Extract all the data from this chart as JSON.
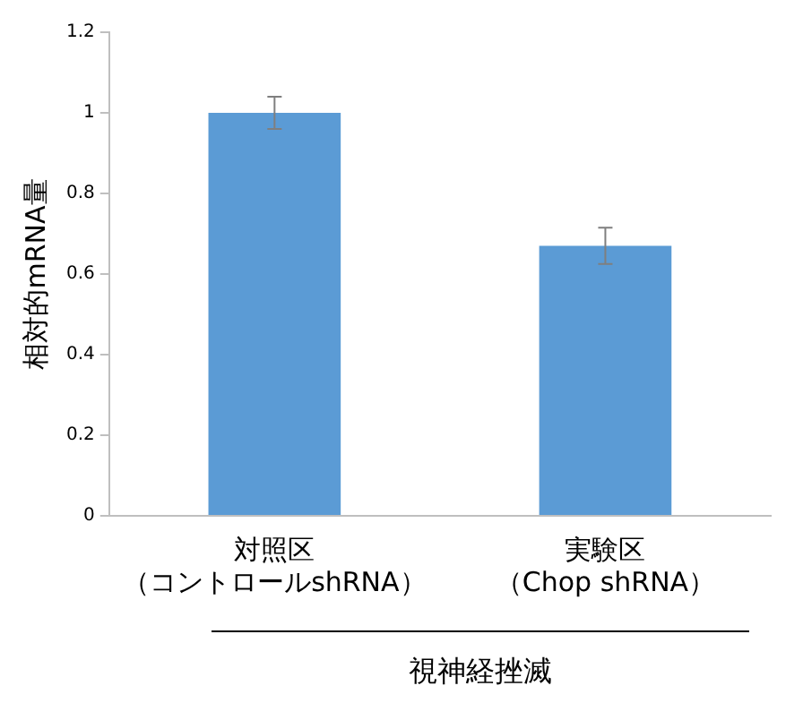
{
  "chart_data": {
    "type": "bar",
    "ylabel": "相対的mRNA量",
    "xlabel": "視神経挫滅",
    "categories": [
      "対照区（コントロールshRNA）",
      "実験区（Chop shRNA）"
    ],
    "values": [
      1.0,
      0.67
    ],
    "errors": [
      0.04,
      0.045
    ],
    "color": "#5b9bd5",
    "ylim": [
      0,
      1.2
    ],
    "yticks": [
      0,
      0.2,
      0.4,
      0.6,
      0.8,
      1,
      1.2
    ],
    "grid": false,
    "legend": false
  }
}
